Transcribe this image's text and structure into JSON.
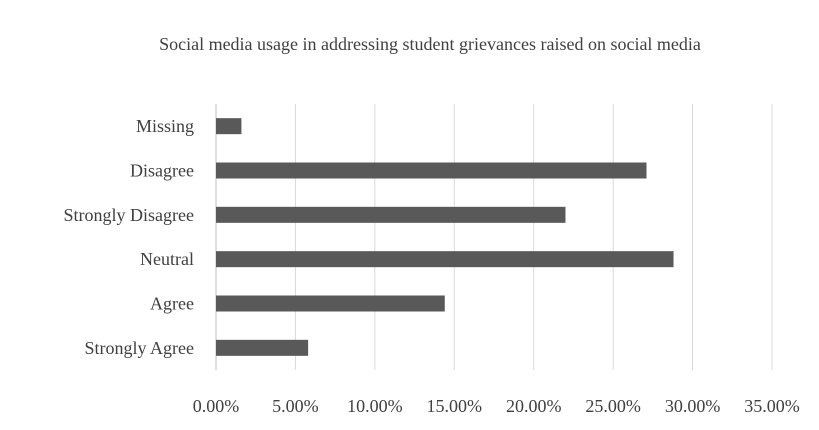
{
  "chart_data": {
    "type": "bar",
    "orientation": "horizontal",
    "title": "Social media usage in addressing student grievances  raised on social media",
    "categories": [
      "Strongly Agree",
      "Agree",
      "Neutral",
      "Strongly Disagree",
      "Disagree",
      "Missing"
    ],
    "values": [
      5.8,
      14.4,
      28.8,
      22.0,
      27.1,
      1.6
    ],
    "value_unit": "%",
    "xlim": [
      0,
      35
    ],
    "x_ticks": [
      0,
      5,
      10,
      15,
      20,
      25,
      30,
      35
    ],
    "x_tick_labels": [
      "0.00%",
      "5.00%",
      "10.00%",
      "15.00%",
      "20.00%",
      "25.00%",
      "30.00%",
      "35.00%"
    ],
    "grid": true,
    "legend": "none",
    "colors": {
      "bar": "#595959",
      "grid": "#d9d9d9",
      "text": "#404040",
      "axis": "#bfbfbf"
    }
  }
}
